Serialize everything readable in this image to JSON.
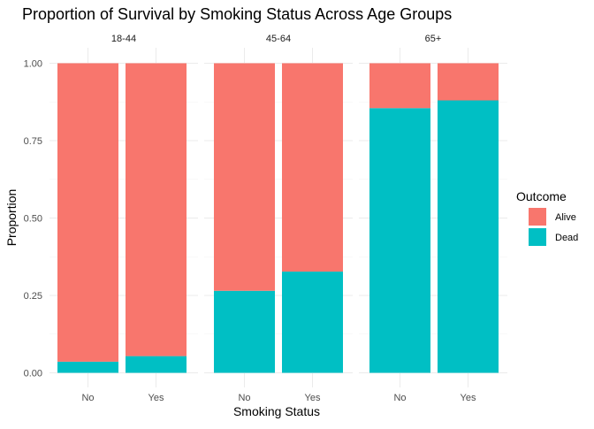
{
  "chart_data": {
    "type": "bar",
    "stacked": true,
    "title": "Proportion of Survival by Smoking Status Across Age Groups",
    "xlabel": "Smoking Status",
    "ylabel": "Proportion",
    "ylim": [
      0,
      1
    ],
    "yticks": [
      "0.00",
      "0.25",
      "0.50",
      "0.75",
      "1.00"
    ],
    "ytick_values": [
      0,
      0.25,
      0.5,
      0.75,
      1.0
    ],
    "categories": [
      "No",
      "Yes"
    ],
    "grid": true,
    "legend": {
      "title": "Outcome",
      "placement": "right",
      "entries": [
        {
          "name": "Alive",
          "color": "#F8766D"
        },
        {
          "name": "Dead",
          "color": "#00BFC4"
        }
      ]
    },
    "facets": [
      {
        "label": "18-44",
        "series": [
          {
            "name": "Dead",
            "values": [
              0.036,
              0.054
            ]
          },
          {
            "name": "Alive",
            "values": [
              0.964,
              0.946
            ]
          }
        ]
      },
      {
        "label": "45-64",
        "series": [
          {
            "name": "Dead",
            "values": [
              0.265,
              0.327
            ]
          },
          {
            "name": "Alive",
            "values": [
              0.735,
              0.673
            ]
          }
        ]
      },
      {
        "label": "65+",
        "series": [
          {
            "name": "Dead",
            "values": [
              0.855,
              0.88
            ]
          },
          {
            "name": "Alive",
            "values": [
              0.145,
              0.12
            ]
          }
        ]
      }
    ]
  }
}
